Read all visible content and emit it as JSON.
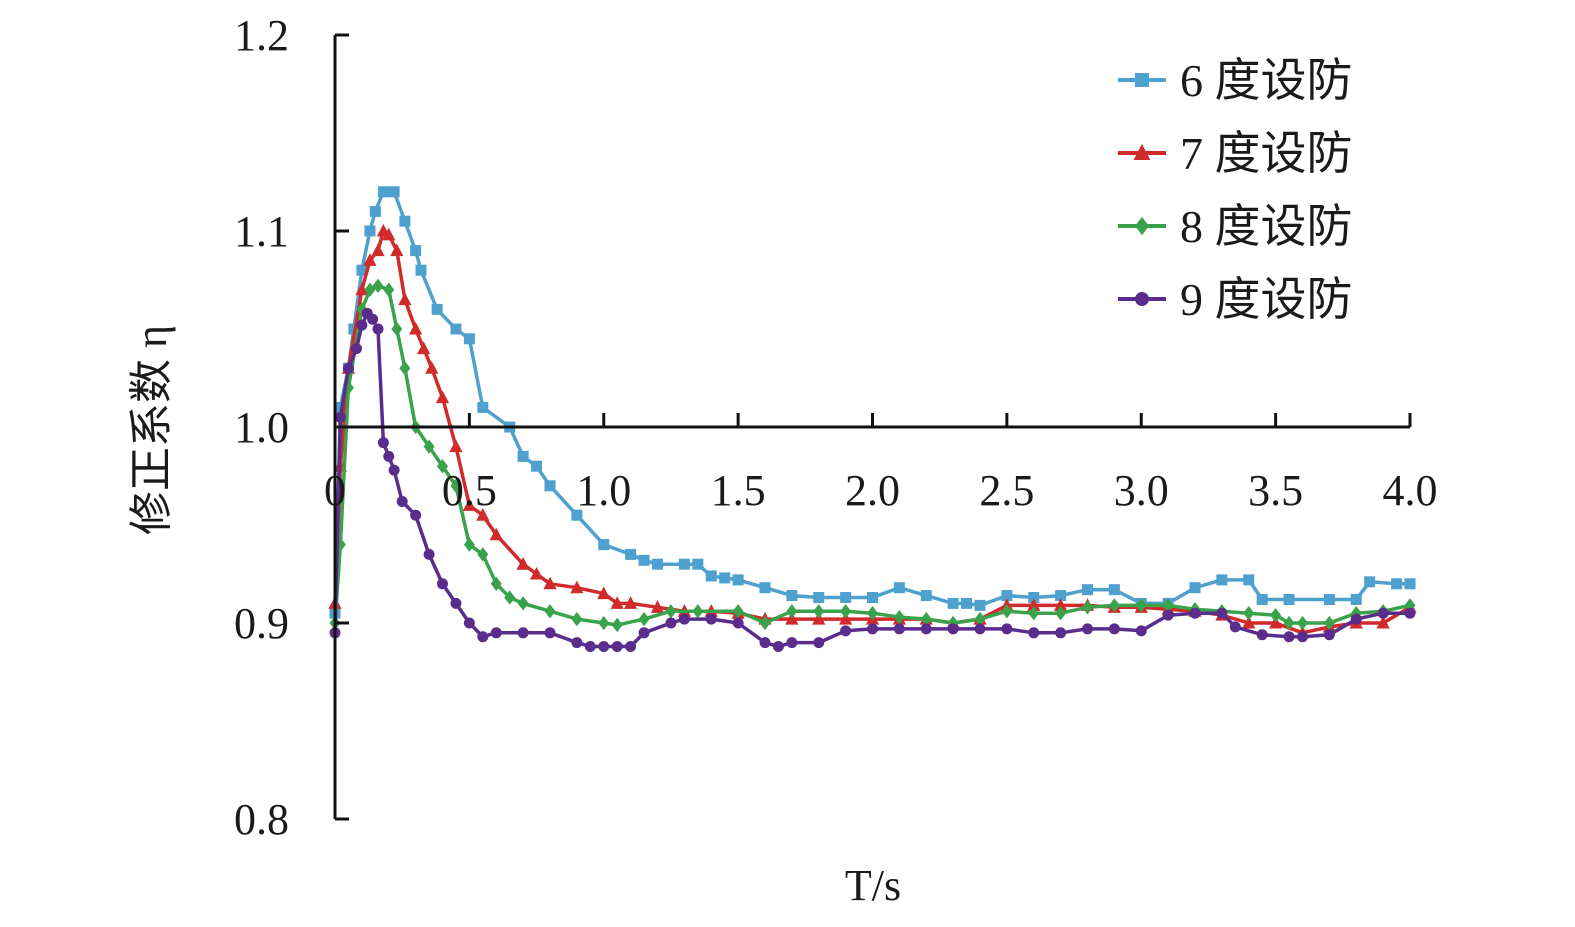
{
  "chart_data": {
    "type": "line",
    "title": "",
    "xlabel": "T/s",
    "ylabel": "修正系数 η",
    "xlim": [
      0,
      4.0
    ],
    "ylim": [
      0.8,
      1.2
    ],
    "x_ticks": [
      0,
      0.5,
      1.0,
      1.5,
      2.0,
      2.5,
      3.0,
      3.5,
      4.0
    ],
    "x_tick_labels": [
      "0",
      "0.5",
      "1.0",
      "1.5",
      "2.0",
      "2.5",
      "3.0",
      "3.5",
      "4.0"
    ],
    "y_ticks": [
      0.8,
      0.9,
      1.0,
      1.1,
      1.2
    ],
    "y_tick_labels": [
      "0.8",
      "0.9",
      "1.0",
      "1.1",
      "1.2"
    ],
    "grid": false,
    "legend_position": "top-right",
    "series": [
      {
        "name": "6 度设防",
        "color": "#4ea0cf",
        "marker": "square",
        "points": [
          [
            0.0,
            0.905
          ],
          [
            0.02,
            1.01
          ],
          [
            0.05,
            1.03
          ],
          [
            0.07,
            1.05
          ],
          [
            0.1,
            1.08
          ],
          [
            0.13,
            1.1
          ],
          [
            0.15,
            1.11
          ],
          [
            0.18,
            1.12
          ],
          [
            0.22,
            1.12
          ],
          [
            0.26,
            1.105
          ],
          [
            0.3,
            1.09
          ],
          [
            0.32,
            1.08
          ],
          [
            0.38,
            1.06
          ],
          [
            0.45,
            1.05
          ],
          [
            0.5,
            1.045
          ],
          [
            0.55,
            1.01
          ],
          [
            0.65,
            1.0
          ],
          [
            0.7,
            0.985
          ],
          [
            0.75,
            0.98
          ],
          [
            0.8,
            0.97
          ],
          [
            0.9,
            0.955
          ],
          [
            1.0,
            0.94
          ],
          [
            1.1,
            0.935
          ],
          [
            1.15,
            0.932
          ],
          [
            1.2,
            0.93
          ],
          [
            1.3,
            0.93
          ],
          [
            1.35,
            0.93
          ],
          [
            1.4,
            0.924
          ],
          [
            1.45,
            0.923
          ],
          [
            1.5,
            0.922
          ],
          [
            1.6,
            0.918
          ],
          [
            1.7,
            0.914
          ],
          [
            1.8,
            0.913
          ],
          [
            1.9,
            0.913
          ],
          [
            2.0,
            0.913
          ],
          [
            2.1,
            0.918
          ],
          [
            2.2,
            0.914
          ],
          [
            2.3,
            0.91
          ],
          [
            2.35,
            0.91
          ],
          [
            2.4,
            0.909
          ],
          [
            2.5,
            0.914
          ],
          [
            2.6,
            0.913
          ],
          [
            2.7,
            0.914
          ],
          [
            2.8,
            0.917
          ],
          [
            2.9,
            0.917
          ],
          [
            3.0,
            0.91
          ],
          [
            3.1,
            0.91
          ],
          [
            3.2,
            0.918
          ],
          [
            3.3,
            0.922
          ],
          [
            3.4,
            0.922
          ],
          [
            3.45,
            0.912
          ],
          [
            3.55,
            0.912
          ],
          [
            3.7,
            0.912
          ],
          [
            3.8,
            0.912
          ],
          [
            3.85,
            0.921
          ],
          [
            3.95,
            0.92
          ],
          [
            4.0,
            0.92
          ]
        ]
      },
      {
        "name": "7 度设防",
        "color": "#d12a2a",
        "marker": "triangle",
        "points": [
          [
            0.0,
            0.91
          ],
          [
            0.02,
            0.98
          ],
          [
            0.05,
            1.03
          ],
          [
            0.1,
            1.07
          ],
          [
            0.13,
            1.085
          ],
          [
            0.16,
            1.09
          ],
          [
            0.18,
            1.1
          ],
          [
            0.2,
            1.098
          ],
          [
            0.23,
            1.09
          ],
          [
            0.26,
            1.065
          ],
          [
            0.3,
            1.05
          ],
          [
            0.33,
            1.04
          ],
          [
            0.36,
            1.03
          ],
          [
            0.4,
            1.015
          ],
          [
            0.45,
            0.99
          ],
          [
            0.5,
            0.96
          ],
          [
            0.55,
            0.955
          ],
          [
            0.6,
            0.945
          ],
          [
            0.7,
            0.93
          ],
          [
            0.75,
            0.925
          ],
          [
            0.8,
            0.92
          ],
          [
            0.9,
            0.918
          ],
          [
            1.0,
            0.915
          ],
          [
            1.05,
            0.91
          ],
          [
            1.1,
            0.91
          ],
          [
            1.2,
            0.908
          ],
          [
            1.3,
            0.906
          ],
          [
            1.4,
            0.906
          ],
          [
            1.5,
            0.905
          ],
          [
            1.6,
            0.902
          ],
          [
            1.7,
            0.902
          ],
          [
            1.8,
            0.902
          ],
          [
            1.9,
            0.902
          ],
          [
            2.0,
            0.902
          ],
          [
            2.1,
            0.902
          ],
          [
            2.2,
            0.902
          ],
          [
            2.3,
            0.9
          ],
          [
            2.4,
            0.902
          ],
          [
            2.5,
            0.909
          ],
          [
            2.6,
            0.909
          ],
          [
            2.7,
            0.909
          ],
          [
            2.8,
            0.909
          ],
          [
            2.9,
            0.908
          ],
          [
            3.0,
            0.908
          ],
          [
            3.1,
            0.907
          ],
          [
            3.2,
            0.906
          ],
          [
            3.3,
            0.904
          ],
          [
            3.4,
            0.9
          ],
          [
            3.5,
            0.9
          ],
          [
            3.6,
            0.895
          ],
          [
            3.7,
            0.898
          ],
          [
            3.8,
            0.9
          ],
          [
            3.9,
            0.9
          ],
          [
            4.0,
            0.908
          ]
        ]
      },
      {
        "name": "8 度设防",
        "color": "#3aa24a",
        "marker": "diamond",
        "points": [
          [
            0.0,
            0.9
          ],
          [
            0.02,
            0.94
          ],
          [
            0.05,
            1.02
          ],
          [
            0.1,
            1.06
          ],
          [
            0.13,
            1.07
          ],
          [
            0.16,
            1.072
          ],
          [
            0.2,
            1.07
          ],
          [
            0.23,
            1.05
          ],
          [
            0.26,
            1.03
          ],
          [
            0.3,
            1.0
          ],
          [
            0.35,
            0.99
          ],
          [
            0.4,
            0.98
          ],
          [
            0.45,
            0.97
          ],
          [
            0.5,
            0.94
          ],
          [
            0.55,
            0.935
          ],
          [
            0.6,
            0.92
          ],
          [
            0.65,
            0.913
          ],
          [
            0.7,
            0.91
          ],
          [
            0.8,
            0.906
          ],
          [
            0.9,
            0.902
          ],
          [
            1.0,
            0.9
          ],
          [
            1.05,
            0.899
          ],
          [
            1.15,
            0.902
          ],
          [
            1.25,
            0.906
          ],
          [
            1.35,
            0.906
          ],
          [
            1.5,
            0.906
          ],
          [
            1.6,
            0.9
          ],
          [
            1.7,
            0.906
          ],
          [
            1.8,
            0.906
          ],
          [
            1.9,
            0.906
          ],
          [
            2.0,
            0.905
          ],
          [
            2.1,
            0.903
          ],
          [
            2.2,
            0.902
          ],
          [
            2.3,
            0.9
          ],
          [
            2.4,
            0.902
          ],
          [
            2.5,
            0.906
          ],
          [
            2.6,
            0.905
          ],
          [
            2.7,
            0.905
          ],
          [
            2.8,
            0.908
          ],
          [
            2.9,
            0.909
          ],
          [
            3.0,
            0.909
          ],
          [
            3.1,
            0.909
          ],
          [
            3.2,
            0.907
          ],
          [
            3.3,
            0.906
          ],
          [
            3.4,
            0.905
          ],
          [
            3.5,
            0.904
          ],
          [
            3.55,
            0.9
          ],
          [
            3.6,
            0.9
          ],
          [
            3.7,
            0.9
          ],
          [
            3.8,
            0.905
          ],
          [
            3.9,
            0.906
          ],
          [
            4.0,
            0.909
          ]
        ]
      },
      {
        "name": "9 度设防",
        "color": "#5a2d8c",
        "marker": "circle",
        "points": [
          [
            0.0,
            0.895
          ],
          [
            0.02,
            1.005
          ],
          [
            0.05,
            1.03
          ],
          [
            0.08,
            1.04
          ],
          [
            0.1,
            1.052
          ],
          [
            0.12,
            1.058
          ],
          [
            0.14,
            1.055
          ],
          [
            0.16,
            1.05
          ],
          [
            0.18,
            0.992
          ],
          [
            0.2,
            0.985
          ],
          [
            0.22,
            0.978
          ],
          [
            0.25,
            0.962
          ],
          [
            0.3,
            0.955
          ],
          [
            0.35,
            0.935
          ],
          [
            0.4,
            0.92
          ],
          [
            0.45,
            0.91
          ],
          [
            0.5,
            0.9
          ],
          [
            0.55,
            0.893
          ],
          [
            0.6,
            0.895
          ],
          [
            0.7,
            0.895
          ],
          [
            0.8,
            0.895
          ],
          [
            0.9,
            0.89
          ],
          [
            0.95,
            0.888
          ],
          [
            1.0,
            0.888
          ],
          [
            1.05,
            0.888
          ],
          [
            1.1,
            0.888
          ],
          [
            1.15,
            0.895
          ],
          [
            1.25,
            0.9
          ],
          [
            1.3,
            0.902
          ],
          [
            1.4,
            0.902
          ],
          [
            1.5,
            0.9
          ],
          [
            1.6,
            0.89
          ],
          [
            1.65,
            0.888
          ],
          [
            1.7,
            0.89
          ],
          [
            1.8,
            0.89
          ],
          [
            1.9,
            0.896
          ],
          [
            2.0,
            0.897
          ],
          [
            2.1,
            0.897
          ],
          [
            2.2,
            0.897
          ],
          [
            2.3,
            0.897
          ],
          [
            2.4,
            0.897
          ],
          [
            2.5,
            0.897
          ],
          [
            2.6,
            0.895
          ],
          [
            2.7,
            0.895
          ],
          [
            2.8,
            0.897
          ],
          [
            2.9,
            0.897
          ],
          [
            3.0,
            0.896
          ],
          [
            3.1,
            0.904
          ],
          [
            3.2,
            0.905
          ],
          [
            3.3,
            0.905
          ],
          [
            3.35,
            0.898
          ],
          [
            3.45,
            0.894
          ],
          [
            3.55,
            0.893
          ],
          [
            3.6,
            0.893
          ],
          [
            3.7,
            0.894
          ],
          [
            3.8,
            0.902
          ],
          [
            3.9,
            0.905
          ],
          [
            4.0,
            0.905
          ]
        ]
      }
    ]
  }
}
